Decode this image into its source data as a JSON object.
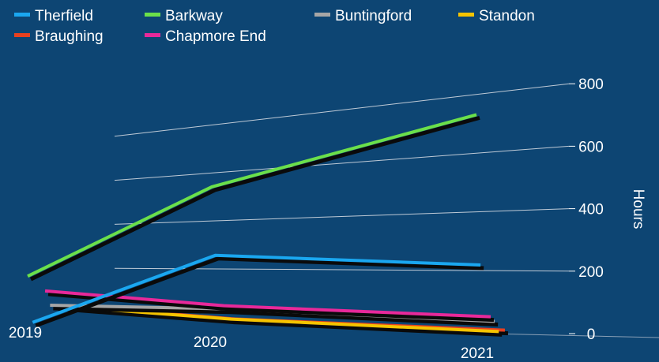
{
  "chart_data": {
    "type": "line",
    "title": "",
    "xlabel": "",
    "ylabel": "Hours",
    "categories": [
      "2019",
      "2020",
      "2021"
    ],
    "ylim": [
      0,
      800
    ],
    "yticks": [
      0,
      200,
      400,
      600,
      800
    ],
    "grid": true,
    "legend_position": "top",
    "series": [
      {
        "name": "Therfield",
        "color": "#1aa7f0",
        "values": [
          0,
          270,
          255
        ]
      },
      {
        "name": "Barkway",
        "color": "#6be04a",
        "values": [
          170,
          520,
          800
        ]
      },
      {
        "name": "Buntingford",
        "color": "#a6a6a6",
        "values": [
          50,
          65,
          40
        ]
      },
      {
        "name": "Standon",
        "color": "#f5c400",
        "values": [
          45,
          25,
          0
        ]
      },
      {
        "name": "Braughing",
        "color": "#e8401f",
        "values": [
          40,
          20,
          0
        ]
      },
      {
        "name": "Chapmore End",
        "color": "#e8299a",
        "values": [
          105,
          80,
          60
        ]
      }
    ]
  }
}
